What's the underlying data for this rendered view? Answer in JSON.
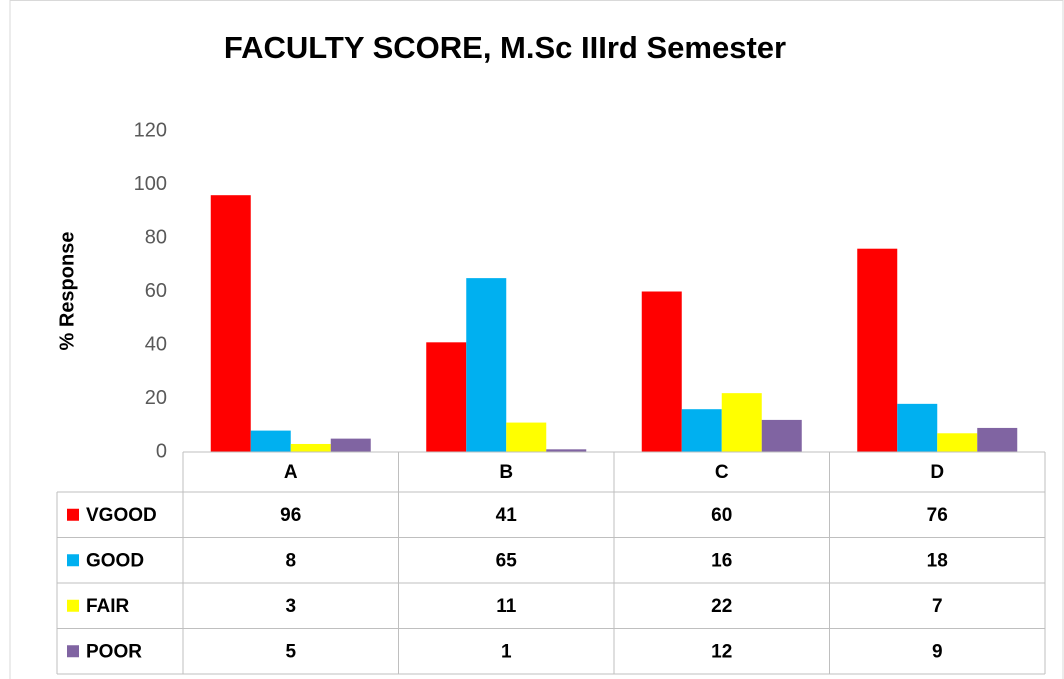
{
  "chart_data": {
    "type": "bar",
    "title": "FACULTY SCORE, M.Sc IIIrd Semester",
    "y_label": "% Response",
    "categories": [
      "A",
      "B",
      "C",
      "D"
    ],
    "series": [
      {
        "name": "VGOOD",
        "color": "#ff0000",
        "values": [
          96,
          41,
          60,
          76
        ]
      },
      {
        "name": "GOOD",
        "color": "#00b0f0",
        "values": [
          8,
          65,
          16,
          18
        ]
      },
      {
        "name": "FAIR",
        "color": "#ffff00",
        "values": [
          3,
          11,
          22,
          7
        ]
      },
      {
        "name": "POOR",
        "color": "#8064a2",
        "values": [
          5,
          1,
          12,
          9
        ]
      }
    ],
    "ylim": [
      0,
      120
    ],
    "yticks": [
      0,
      20,
      40,
      60,
      80,
      100,
      120
    ],
    "grid": false,
    "data_table": true
  }
}
